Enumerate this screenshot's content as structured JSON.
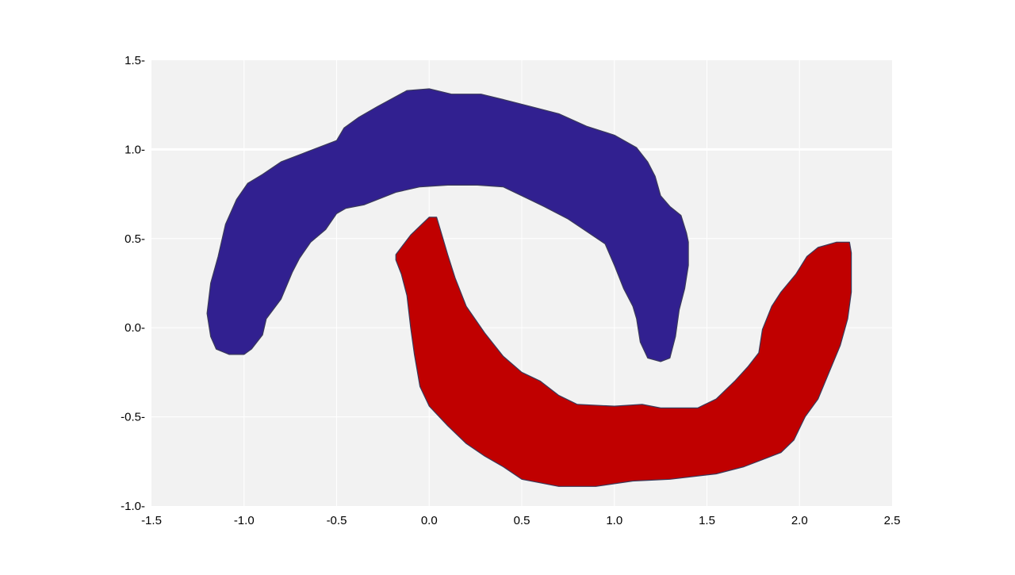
{
  "chart_data": {
    "type": "area",
    "title": "",
    "xlabel": "",
    "ylabel": "",
    "xlim": [
      -1.5,
      2.5
    ],
    "ylim": [
      -1.0,
      1.5
    ],
    "grid": true,
    "xticks": [
      -1.5,
      -1.0,
      -0.5,
      0.0,
      0.5,
      1.0,
      1.5,
      2.0,
      2.5
    ],
    "xtick_labels": [
      "-1.5",
      "-1.0",
      "-0.5",
      "0.0",
      "0.5",
      "1.0",
      "1.5",
      "2.0",
      "2.5"
    ],
    "yticks": [
      -1.0,
      -0.5,
      0.0,
      0.5,
      1.0,
      1.5
    ],
    "ytick_labels": [
      "-1.0-",
      "-0.5-",
      "0.0-",
      "0.5-",
      "1.0-",
      "1.5-"
    ],
    "series": [
      {
        "color": "#312090",
        "points": [
          [
            -1.2,
            0.08
          ],
          [
            -1.18,
            0.25
          ],
          [
            -1.14,
            0.4
          ],
          [
            -1.1,
            0.58
          ],
          [
            -1.04,
            0.72
          ],
          [
            -0.98,
            0.81
          ],
          [
            -0.9,
            0.86
          ],
          [
            -0.8,
            0.93
          ],
          [
            -0.65,
            0.99
          ],
          [
            -0.5,
            1.05
          ],
          [
            -0.46,
            1.12
          ],
          [
            -0.38,
            1.18
          ],
          [
            -0.28,
            1.24
          ],
          [
            -0.12,
            1.33
          ],
          [
            0.0,
            1.34
          ],
          [
            0.12,
            1.31
          ],
          [
            0.28,
            1.31
          ],
          [
            0.4,
            1.28
          ],
          [
            0.55,
            1.24
          ],
          [
            0.7,
            1.2
          ],
          [
            0.85,
            1.13
          ],
          [
            1.0,
            1.08
          ],
          [
            1.12,
            1.01
          ],
          [
            1.18,
            0.93
          ],
          [
            1.22,
            0.85
          ],
          [
            1.25,
            0.74
          ],
          [
            1.3,
            0.68
          ],
          [
            1.36,
            0.63
          ],
          [
            1.39,
            0.53
          ],
          [
            1.4,
            0.48
          ],
          [
            1.4,
            0.35
          ],
          [
            1.38,
            0.22
          ],
          [
            1.35,
            0.1
          ],
          [
            1.33,
            -0.05
          ],
          [
            1.3,
            -0.17
          ],
          [
            1.25,
            -0.19
          ],
          [
            1.18,
            -0.17
          ],
          [
            1.14,
            -0.08
          ],
          [
            1.12,
            0.05
          ],
          [
            1.1,
            0.12
          ],
          [
            1.05,
            0.22
          ],
          [
            1.0,
            0.35
          ],
          [
            0.95,
            0.47
          ],
          [
            0.85,
            0.54
          ],
          [
            0.75,
            0.61
          ],
          [
            0.62,
            0.68
          ],
          [
            0.52,
            0.73
          ],
          [
            0.4,
            0.79
          ],
          [
            0.26,
            0.8
          ],
          [
            0.1,
            0.8
          ],
          [
            -0.05,
            0.79
          ],
          [
            -0.18,
            0.76
          ],
          [
            -0.35,
            0.69
          ],
          [
            -0.45,
            0.67
          ],
          [
            -0.5,
            0.64
          ],
          [
            -0.56,
            0.55
          ],
          [
            -0.64,
            0.48
          ],
          [
            -0.7,
            0.39
          ],
          [
            -0.74,
            0.31
          ],
          [
            -0.8,
            0.16
          ],
          [
            -0.88,
            0.05
          ],
          [
            -0.9,
            -0.04
          ],
          [
            -0.96,
            -0.12
          ],
          [
            -1.0,
            -0.15
          ],
          [
            -1.08,
            -0.15
          ],
          [
            -1.15,
            -0.12
          ],
          [
            -1.18,
            -0.05
          ]
        ]
      },
      {
        "color": "#c00000",
        "points": [
          [
            -0.18,
            0.41
          ],
          [
            -0.1,
            0.52
          ],
          [
            -0.04,
            0.58
          ],
          [
            0.0,
            0.62
          ],
          [
            0.04,
            0.62
          ],
          [
            0.06,
            0.55
          ],
          [
            0.1,
            0.41
          ],
          [
            0.14,
            0.28
          ],
          [
            0.2,
            0.12
          ],
          [
            0.3,
            -0.03
          ],
          [
            0.4,
            -0.16
          ],
          [
            0.5,
            -0.25
          ],
          [
            0.6,
            -0.3
          ],
          [
            0.7,
            -0.38
          ],
          [
            0.8,
            -0.43
          ],
          [
            1.0,
            -0.44
          ],
          [
            1.15,
            -0.43
          ],
          [
            1.25,
            -0.45
          ],
          [
            1.45,
            -0.45
          ],
          [
            1.55,
            -0.4
          ],
          [
            1.65,
            -0.3
          ],
          [
            1.72,
            -0.22
          ],
          [
            1.78,
            -0.14
          ],
          [
            1.8,
            -0.01
          ],
          [
            1.85,
            0.12
          ],
          [
            1.9,
            0.2
          ],
          [
            1.98,
            0.3
          ],
          [
            2.04,
            0.4
          ],
          [
            2.1,
            0.45
          ],
          [
            2.2,
            0.48
          ],
          [
            2.27,
            0.48
          ],
          [
            2.28,
            0.42
          ],
          [
            2.28,
            0.2
          ],
          [
            2.26,
            0.05
          ],
          [
            2.22,
            -0.1
          ],
          [
            2.16,
            -0.25
          ],
          [
            2.1,
            -0.4
          ],
          [
            2.03,
            -0.5
          ],
          [
            1.97,
            -0.63
          ],
          [
            1.9,
            -0.7
          ],
          [
            1.8,
            -0.74
          ],
          [
            1.7,
            -0.78
          ],
          [
            1.55,
            -0.82
          ],
          [
            1.3,
            -0.85
          ],
          [
            1.1,
            -0.86
          ],
          [
            0.9,
            -0.89
          ],
          [
            0.7,
            -0.89
          ],
          [
            0.5,
            -0.85
          ],
          [
            0.4,
            -0.78
          ],
          [
            0.3,
            -0.72
          ],
          [
            0.2,
            -0.65
          ],
          [
            0.1,
            -0.55
          ],
          [
            0.0,
            -0.44
          ],
          [
            -0.05,
            -0.33
          ],
          [
            -0.08,
            -0.15
          ],
          [
            -0.1,
            0.0
          ],
          [
            -0.12,
            0.18
          ],
          [
            -0.15,
            0.3
          ],
          [
            -0.18,
            0.38
          ]
        ]
      }
    ]
  }
}
